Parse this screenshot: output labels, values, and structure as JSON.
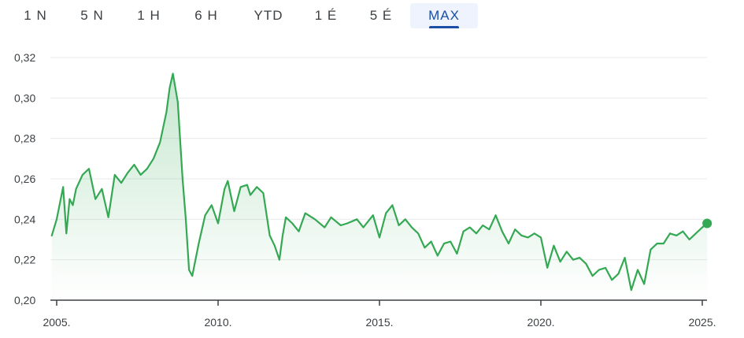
{
  "range_tabs": {
    "items": [
      "1 N",
      "5 N",
      "1 H",
      "6 H",
      "YTD",
      "1 É",
      "5 É",
      "MAX"
    ],
    "active": "MAX"
  },
  "colors": {
    "line": "#34a853",
    "accent": "#1a4fa3",
    "grid": "#e8eaed",
    "axis": "#3c4043"
  },
  "chart_data": {
    "type": "line",
    "xlabel": "",
    "ylabel": "",
    "xlim": [
      2005.0,
      2025.2
    ],
    "ylim": [
      0.2,
      0.32
    ],
    "y_ticks": [
      "0,32",
      "0,30",
      "0,28",
      "0,26",
      "0,24",
      "0,22",
      "0,20"
    ],
    "y_tick_values": [
      0.32,
      0.3,
      0.28,
      0.26,
      0.24,
      0.22,
      0.2
    ],
    "x_ticks": [
      "2005.",
      "2010.",
      "2015.",
      "2020.",
      "2025."
    ],
    "x_tick_values": [
      2005,
      2010,
      2015,
      2020,
      2025
    ],
    "grid": true,
    "series": [
      {
        "x": [
          2004.85,
          2005.0,
          2005.2,
          2005.3,
          2005.4,
          2005.5,
          2005.6,
          2005.8,
          2006.0,
          2006.2,
          2006.4,
          2006.6,
          2006.8,
          2007.0,
          2007.2,
          2007.4,
          2007.6,
          2007.8,
          2008.0,
          2008.2,
          2008.4,
          2008.5,
          2008.6,
          2008.75,
          2008.9,
          2009.0,
          2009.1,
          2009.2,
          2009.4,
          2009.6,
          2009.8,
          2010.0,
          2010.2,
          2010.3,
          2010.5,
          2010.7,
          2010.9,
          2011.0,
          2011.2,
          2011.4,
          2011.6,
          2011.75,
          2011.9,
          2012.0,
          2012.1,
          2012.3,
          2012.5,
          2012.7,
          2013.0,
          2013.3,
          2013.5,
          2013.8,
          2014.0,
          2014.3,
          2014.5,
          2014.8,
          2015.0,
          2015.2,
          2015.4,
          2015.6,
          2015.8,
          2016.0,
          2016.2,
          2016.4,
          2016.6,
          2016.8,
          2017.0,
          2017.2,
          2017.4,
          2017.6,
          2017.8,
          2018.0,
          2018.2,
          2018.4,
          2018.6,
          2018.8,
          2019.0,
          2019.2,
          2019.4,
          2019.6,
          2019.8,
          2020.0,
          2020.2,
          2020.4,
          2020.6,
          2020.8,
          2021.0,
          2021.2,
          2021.4,
          2021.6,
          2021.8,
          2022.0,
          2022.2,
          2022.4,
          2022.6,
          2022.8,
          2023.0,
          2023.2,
          2023.4,
          2023.6,
          2023.8,
          2024.0,
          2024.2,
          2024.4,
          2024.6,
          2024.8,
          2025.0,
          2025.15
        ],
        "values": [
          0.232,
          0.24,
          0.256,
          0.233,
          0.25,
          0.247,
          0.255,
          0.262,
          0.265,
          0.25,
          0.255,
          0.241,
          0.262,
          0.258,
          0.263,
          0.267,
          0.262,
          0.265,
          0.27,
          0.278,
          0.293,
          0.305,
          0.312,
          0.298,
          0.26,
          0.24,
          0.215,
          0.212,
          0.228,
          0.242,
          0.247,
          0.238,
          0.255,
          0.259,
          0.244,
          0.256,
          0.257,
          0.252,
          0.256,
          0.253,
          0.232,
          0.227,
          0.22,
          0.232,
          0.241,
          0.238,
          0.234,
          0.243,
          0.24,
          0.236,
          0.241,
          0.237,
          0.238,
          0.24,
          0.236,
          0.242,
          0.231,
          0.243,
          0.247,
          0.237,
          0.24,
          0.236,
          0.233,
          0.226,
          0.229,
          0.222,
          0.228,
          0.229,
          0.223,
          0.234,
          0.236,
          0.233,
          0.237,
          0.235,
          0.242,
          0.234,
          0.228,
          0.235,
          0.232,
          0.231,
          0.233,
          0.231,
          0.216,
          0.227,
          0.219,
          0.224,
          0.22,
          0.221,
          0.218,
          0.212,
          0.215,
          0.216,
          0.21,
          0.213,
          0.221,
          0.205,
          0.215,
          0.208,
          0.225,
          0.228,
          0.228,
          0.233,
          0.232,
          0.234,
          0.23,
          0.233,
          0.236,
          0.238
        ]
      }
    ]
  }
}
